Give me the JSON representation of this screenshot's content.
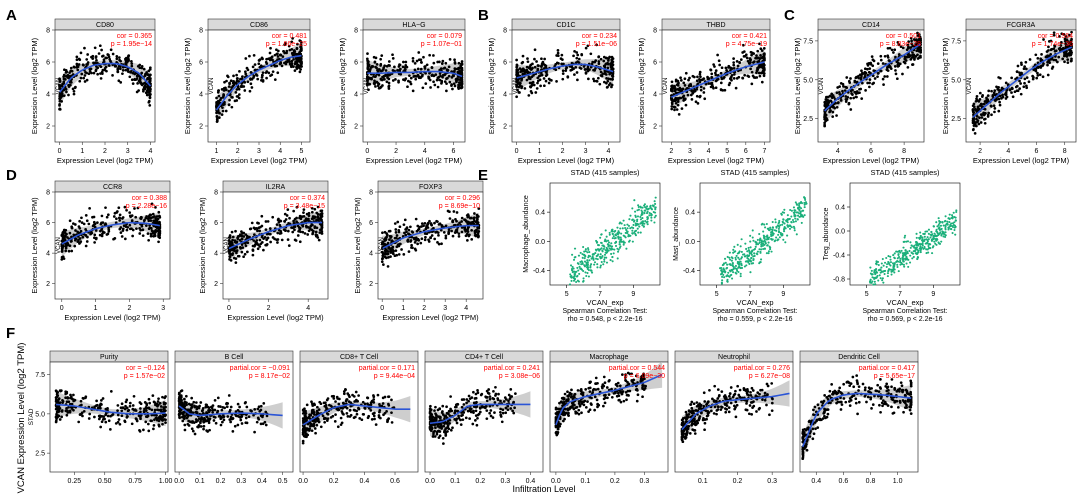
{
  "figure": {
    "panel_letters": [
      "A",
      "B",
      "C",
      "D",
      "E",
      "F"
    ],
    "common": {
      "ylabel": "Expression Level (log2 TPM)",
      "xlabel": "Expression Level (log2 TPM)",
      "vcan": "VCAN",
      "stad": "STAD",
      "f_ylabel": "VCAN Expression Level (log2 TPM)",
      "f_xlabel": "Infiltration Level"
    }
  },
  "colors": {
    "point": "#000000",
    "fit": "#2b55d6",
    "ribbon": "#bdbdbd",
    "stat": "#ff0000",
    "strip": "#d9d9d9",
    "green": "#1aaf7a"
  },
  "chart_data": [
    {
      "panel": "A",
      "title": "CD80",
      "type": "scatter",
      "ytick_labels": [
        "2",
        "4",
        "6",
        "8"
      ],
      "xtick_labels": [
        "0",
        "1",
        "2",
        "3",
        "4"
      ],
      "xlim": [
        -0.2,
        4.2
      ],
      "ylim": [
        1,
        8
      ],
      "xticks": [
        0,
        1,
        2,
        3,
        4
      ],
      "yticks": [
        2,
        4,
        6,
        8
      ],
      "stat1": "cor = 0.365",
      "stat2": "p = 1.95e−14",
      "fit": [
        [
          0,
          4.1
        ],
        [
          0.5,
          5.0
        ],
        [
          1,
          5.5
        ],
        [
          1.5,
          5.8
        ],
        [
          2,
          5.9
        ],
        [
          2.5,
          5.9
        ],
        [
          3,
          5.7
        ],
        [
          3.5,
          5.3
        ],
        [
          4,
          4.5
        ]
      ],
      "n": 340
    },
    {
      "panel": "A",
      "title": "CD86",
      "type": "scatter",
      "ytick_labels": [
        "2",
        "4",
        "6",
        "8"
      ],
      "xtick_labels": [
        "1",
        "2",
        "3",
        "4",
        "5"
      ],
      "xlim": [
        0.6,
        5.4
      ],
      "ylim": [
        1,
        8
      ],
      "xticks": [
        1,
        2,
        3,
        4,
        5
      ],
      "yticks": [
        2,
        4,
        6,
        8
      ],
      "stat1": "cor = 0.481",
      "stat2": "p = 1.66e−25",
      "fit": [
        [
          1,
          3.0
        ],
        [
          1.5,
          3.9
        ],
        [
          2,
          4.6
        ],
        [
          2.5,
          5.1
        ],
        [
          3,
          5.5
        ],
        [
          3.5,
          5.8
        ],
        [
          4,
          6.1
        ],
        [
          4.5,
          6.3
        ],
        [
          5,
          6.4
        ]
      ],
      "n": 340
    },
    {
      "panel": "A",
      "title": "HLA−G",
      "type": "scatter",
      "ytick_labels": [
        "2",
        "4",
        "6",
        "8"
      ],
      "xtick_labels": [
        "0",
        "2",
        "4",
        "6"
      ],
      "xlim": [
        -0.3,
        6.8
      ],
      "ylim": [
        1,
        8
      ],
      "xticks": [
        0,
        2,
        4,
        6
      ],
      "yticks": [
        2,
        4,
        6,
        8
      ],
      "stat1": "cor = 0.079",
      "stat2": "p = 1.07e−01",
      "fit": [
        [
          0,
          5.3
        ],
        [
          1,
          5.3
        ],
        [
          2,
          5.35
        ],
        [
          3,
          5.35
        ],
        [
          4,
          5.4
        ],
        [
          5,
          5.4
        ],
        [
          6,
          5.3
        ],
        [
          6.6,
          5.1
        ]
      ],
      "n": 340
    },
    {
      "panel": "B",
      "title": "CD1C",
      "type": "scatter",
      "ytick_labels": [
        "2",
        "4",
        "6",
        "8"
      ],
      "xtick_labels": [
        "0",
        "1",
        "2",
        "3",
        "4"
      ],
      "xlim": [
        -0.2,
        4.5
      ],
      "ylim": [
        1,
        8
      ],
      "xticks": [
        0,
        1,
        2,
        3,
        4
      ],
      "yticks": [
        2,
        4,
        6,
        8
      ],
      "stat1": "cor = 0.234",
      "stat2": "p = 1.51e−06",
      "fit": [
        [
          0,
          5.0
        ],
        [
          0.5,
          5.2
        ],
        [
          1,
          5.4
        ],
        [
          1.5,
          5.6
        ],
        [
          2,
          5.75
        ],
        [
          2.5,
          5.85
        ],
        [
          3,
          5.85
        ],
        [
          3.5,
          5.7
        ],
        [
          4.2,
          5.4
        ]
      ],
      "n": 340
    },
    {
      "panel": "B",
      "title": "THBD",
      "type": "scatter",
      "ytick_labels": [
        "2",
        "4",
        "6",
        "8"
      ],
      "xtick_labels": [
        "2",
        "3",
        "4",
        "5",
        "6",
        "7"
      ],
      "xlim": [
        1.5,
        7.3
      ],
      "ylim": [
        1,
        8
      ],
      "xticks": [
        2,
        3,
        4,
        5,
        6,
        7
      ],
      "yticks": [
        2,
        4,
        6,
        8
      ],
      "stat1": "cor = 0.421",
      "stat2": "p = 4.75e−19",
      "fit": [
        [
          2,
          3.8
        ],
        [
          3,
          4.3
        ],
        [
          4,
          4.8
        ],
        [
          5,
          5.3
        ],
        [
          6,
          5.7
        ],
        [
          7,
          6.0
        ]
      ],
      "n": 340
    },
    {
      "panel": "C",
      "title": "CD14",
      "type": "scatter",
      "ytick_labels": [
        "2.5",
        "5.0",
        "7.5"
      ],
      "xtick_labels": [
        "4",
        "6",
        "8"
      ],
      "xlim": [
        2.8,
        9.2
      ],
      "ylim": [
        1,
        8.2
      ],
      "xticks": [
        4,
        6,
        8
      ],
      "yticks": [
        2.5,
        5.0,
        7.5
      ],
      "stat1": "cor = 0.501",
      "stat2": "p = 8.83e−28",
      "fit": [
        [
          3.2,
          3.0
        ],
        [
          4,
          3.8
        ],
        [
          5,
          4.6
        ],
        [
          6,
          5.3
        ],
        [
          7,
          6.0
        ],
        [
          8,
          6.6
        ],
        [
          9,
          7.3
        ]
      ],
      "n": 340
    },
    {
      "panel": "C",
      "title": "FCGR3A",
      "type": "scatter",
      "ytick_labels": [
        "2.5",
        "5.0",
        "7.5"
      ],
      "xtick_labels": [
        "2",
        "4",
        "6",
        "8"
      ],
      "xlim": [
        1,
        8.8
      ],
      "ylim": [
        1,
        8.2
      ],
      "xticks": [
        2,
        4,
        6,
        8
      ],
      "yticks": [
        2.5,
        5.0,
        7.5
      ],
      "stat1": "cor = 0.564",
      "stat2": "p = 1.74e−36",
      "fit": [
        [
          1.5,
          2.6
        ],
        [
          2.5,
          3.4
        ],
        [
          3.5,
          4.2
        ],
        [
          4.5,
          4.9
        ],
        [
          5.5,
          5.6
        ],
        [
          6.5,
          6.2
        ],
        [
          7.5,
          6.7
        ],
        [
          8.5,
          7.1
        ]
      ],
      "n": 340
    },
    {
      "panel": "D",
      "title": "CCR8",
      "type": "scatter",
      "ytick_labels": [
        "2",
        "4",
        "6",
        "8"
      ],
      "xtick_labels": [
        "0",
        "1",
        "2",
        "3"
      ],
      "xlim": [
        -0.2,
        3.2
      ],
      "ylim": [
        1,
        8
      ],
      "xticks": [
        0,
        1,
        2,
        3
      ],
      "yticks": [
        2,
        4,
        6,
        8
      ],
      "stat1": "cor = 0.388",
      "stat2": "p = 2.28e−16",
      "fit": [
        [
          0,
          4.6
        ],
        [
          0.5,
          5.2
        ],
        [
          1,
          5.6
        ],
        [
          1.5,
          5.85
        ],
        [
          2,
          6.0
        ],
        [
          2.5,
          5.95
        ],
        [
          2.9,
          5.8
        ]
      ],
      "n": 340
    },
    {
      "panel": "D",
      "title": "IL2RA",
      "type": "scatter",
      "ytick_labels": [
        "2",
        "4",
        "6",
        "8"
      ],
      "xtick_labels": [
        "0",
        "2",
        "4"
      ],
      "xlim": [
        -0.3,
        5
      ],
      "ylim": [
        1,
        8
      ],
      "xticks": [
        0,
        2,
        4
      ],
      "yticks": [
        2,
        4,
        6,
        8
      ],
      "stat1": "cor = 0.374",
      "stat2": "p = 3.48e−15",
      "fit": [
        [
          0,
          4.3
        ],
        [
          1,
          4.9
        ],
        [
          2,
          5.4
        ],
        [
          3,
          5.8
        ],
        [
          4,
          6.0
        ],
        [
          4.7,
          6.0
        ]
      ],
      "n": 340
    },
    {
      "panel": "D",
      "title": "FOXP3",
      "type": "scatter",
      "ytick_labels": [
        "2",
        "4",
        "6",
        "8"
      ],
      "xtick_labels": [
        "0",
        "1",
        "2",
        "3",
        "4"
      ],
      "xlim": [
        -0.2,
        4.8
      ],
      "ylim": [
        1,
        8
      ],
      "xticks": [
        0,
        1,
        2,
        3,
        4
      ],
      "yticks": [
        2,
        4,
        6,
        8
      ],
      "stat1": "cor = 0.296",
      "stat2": "p = 8.69e−10",
      "fit": [
        [
          0,
          4.3
        ],
        [
          1,
          5.0
        ],
        [
          2,
          5.4
        ],
        [
          3,
          5.65
        ],
        [
          4,
          5.8
        ],
        [
          4.6,
          5.8
        ]
      ],
      "n": 340
    },
    {
      "panel": "E",
      "title": "STAD (415 samples)",
      "type": "scatter",
      "ylabel": "Macrophage_abundance",
      "xlabel": "VCAN_exp",
      "test": "Spearman Correlation Test:",
      "rho": "rho = 0.548, p < 2.2e-16",
      "ytick_labels": [
        "-0.4",
        "0.0",
        "0.4"
      ],
      "xtick_labels": [
        "5",
        "7",
        "9"
      ],
      "xlim": [
        4,
        10.6
      ],
      "ylim": [
        -0.6,
        0.8
      ],
      "xticks": [
        5,
        7,
        9
      ],
      "yticks": [
        -0.4,
        0.0,
        0.4
      ],
      "n": 400
    },
    {
      "panel": "E",
      "title": "STAD (415 samples)",
      "type": "scatter",
      "ylabel": "Mast_abundance",
      "xlabel": "VCAN_exp",
      "test": "Spearman Correlation Test:",
      "rho": "rho = 0.559, p < 2.2e-16",
      "ytick_labels": [
        "-0.4",
        "0.0",
        "0.4"
      ],
      "xtick_labels": [
        "5",
        "7",
        "9"
      ],
      "xlim": [
        4,
        10.6
      ],
      "ylim": [
        -0.6,
        0.8
      ],
      "xticks": [
        5,
        7,
        9
      ],
      "yticks": [
        -0.4,
        0.0,
        0.4
      ],
      "n": 400
    },
    {
      "panel": "E",
      "title": "STAD (415 samples)",
      "type": "scatter",
      "ylabel": "Treg_abundance",
      "xlabel": "VCAN_exp",
      "test": "Spearman Correlation Test:",
      "rho": "rho = 0.569, p < 2.2e-16",
      "ytick_labels": [
        "-0.8",
        "-0.4",
        "0.0",
        "0.4"
      ],
      "xtick_labels": [
        "5",
        "7",
        "9"
      ],
      "xlim": [
        4,
        10.6
      ],
      "ylim": [
        -0.9,
        0.8
      ],
      "xticks": [
        5,
        7,
        9
      ],
      "yticks": [
        -0.8,
        -0.4,
        0.0,
        0.4
      ],
      "n": 400
    },
    {
      "panel": "F",
      "title": "Purity",
      "type": "scatter",
      "stat1": "cor = −0.124",
      "stat2": "p = 1.57e−02",
      "xtick_labels": [
        "0.25",
        "0.50",
        "0.75",
        "1.00"
      ],
      "ytick_labels": [
        "2.5",
        "5.0",
        "7.5"
      ],
      "xlim": [
        0.05,
        1.02
      ],
      "ylim": [
        1.3,
        8.3
      ],
      "xticks": [
        0.25,
        0.5,
        0.75,
        1.0
      ],
      "yticks": [
        2.5,
        5.0,
        7.5
      ],
      "fit": [
        [
          0.1,
          5.6
        ],
        [
          0.25,
          5.5
        ],
        [
          0.4,
          5.3
        ],
        [
          0.55,
          5.1
        ],
        [
          0.7,
          5.0
        ],
        [
          0.85,
          5.0
        ],
        [
          1.0,
          5.05
        ]
      ],
      "n": 300
    },
    {
      "panel": "F",
      "title": "B Cell",
      "type": "scatter",
      "stat1": "partial.cor = −0.091",
      "stat2": "p = 8.17e−02",
      "xtick_labels": [
        "0.0",
        "0.1",
        "0.2",
        "0.3",
        "0.4",
        "0.5"
      ],
      "ytick_labels": [
        "2.5",
        "5.0",
        "7.5"
      ],
      "xlim": [
        -0.02,
        0.55
      ],
      "ylim": [
        1.3,
        8.3
      ],
      "xticks": [
        0,
        0.1,
        0.2,
        0.3,
        0.4,
        0.5
      ],
      "yticks": [
        2.5,
        5.0,
        7.5
      ],
      "fit": [
        [
          0,
          5.5
        ],
        [
          0.05,
          5.0
        ],
        [
          0.1,
          4.9
        ],
        [
          0.2,
          5.0
        ],
        [
          0.3,
          5.05
        ],
        [
          0.4,
          5.0
        ],
        [
          0.5,
          4.9
        ]
      ],
      "n": 300
    },
    {
      "panel": "F",
      "title": "CD8+ T Cell",
      "type": "scatter",
      "stat1": "partial.cor = 0.171",
      "stat2": "p = 9.44e−04",
      "xtick_labels": [
        "0.0",
        "0.2",
        "0.4",
        "0.6"
      ],
      "ytick_labels": [
        "2.5",
        "5.0",
        "7.5"
      ],
      "xlim": [
        -0.02,
        0.75
      ],
      "ylim": [
        1.3,
        8.3
      ],
      "xticks": [
        0,
        0.2,
        0.4,
        0.6
      ],
      "yticks": [
        2.5,
        5.0,
        7.5
      ],
      "fit": [
        [
          0,
          4.3
        ],
        [
          0.1,
          4.9
        ],
        [
          0.2,
          5.4
        ],
        [
          0.3,
          5.6
        ],
        [
          0.4,
          5.5
        ],
        [
          0.5,
          5.4
        ],
        [
          0.6,
          5.3
        ],
        [
          0.7,
          5.3
        ]
      ],
      "n": 300
    },
    {
      "panel": "F",
      "title": "CD4+ T Cell",
      "type": "scatter",
      "stat1": "partial.cor = 0.241",
      "stat2": "p = 3.08e−06",
      "xtick_labels": [
        "0.0",
        "0.1",
        "0.2",
        "0.3",
        "0.4"
      ],
      "ytick_labels": [
        "2.5",
        "5.0",
        "7.5"
      ],
      "xlim": [
        -0.02,
        0.45
      ],
      "ylim": [
        1.3,
        8.3
      ],
      "xticks": [
        0,
        0.1,
        0.2,
        0.3,
        0.4
      ],
      "yticks": [
        2.5,
        5.0,
        7.5
      ],
      "fit": [
        [
          0,
          4.4
        ],
        [
          0.05,
          4.5
        ],
        [
          0.1,
          4.9
        ],
        [
          0.15,
          5.5
        ],
        [
          0.2,
          5.6
        ],
        [
          0.3,
          5.6
        ],
        [
          0.4,
          5.6
        ]
      ],
      "n": 300
    },
    {
      "panel": "F",
      "title": "Macrophage",
      "type": "scatter",
      "stat1": "partial.cor = 0.544",
      "stat2": "p = 6.09e−30",
      "xtick_labels": [
        "0.0",
        "0.1",
        "0.2",
        "0.3"
      ],
      "ytick_labels": [
        "2.5",
        "5.0",
        "7.5"
      ],
      "xlim": [
        -0.02,
        0.38
      ],
      "ylim": [
        1.3,
        8.3
      ],
      "xticks": [
        0,
        0.1,
        0.2,
        0.3
      ],
      "yticks": [
        2.5,
        5.0,
        7.5
      ],
      "fit": [
        [
          0,
          4.3
        ],
        [
          0.02,
          5.3
        ],
        [
          0.05,
          5.8
        ],
        [
          0.1,
          6.1
        ],
        [
          0.15,
          6.3
        ],
        [
          0.2,
          6.5
        ],
        [
          0.3,
          7.0
        ],
        [
          0.36,
          7.5
        ]
      ],
      "n": 300
    },
    {
      "panel": "F",
      "title": "Neutrophil",
      "type": "scatter",
      "stat1": "partial.cor = 0.276",
      "stat2": "p = 6.27e−08",
      "xtick_labels": [
        "0.1",
        "0.2",
        "0.3"
      ],
      "ytick_labels": [
        "2.5",
        "5.0",
        "7.5"
      ],
      "xlim": [
        0.02,
        0.36
      ],
      "ylim": [
        1.3,
        8.3
      ],
      "xticks": [
        0.1,
        0.2,
        0.3
      ],
      "yticks": [
        2.5,
        5.0,
        7.5
      ],
      "fit": [
        [
          0.04,
          4.0
        ],
        [
          0.08,
          5.0
        ],
        [
          0.12,
          5.5
        ],
        [
          0.16,
          5.8
        ],
        [
          0.2,
          5.9
        ],
        [
          0.25,
          6.0
        ],
        [
          0.3,
          6.1
        ],
        [
          0.35,
          6.3
        ]
      ],
      "n": 300
    },
    {
      "panel": "F",
      "title": "Dendritic Cell",
      "type": "scatter",
      "stat1": "partial.cor = 0.417",
      "stat2": "p = 5.65e−17",
      "xtick_labels": [
        "0.4",
        "0.6",
        "0.8",
        "1.0"
      ],
      "ytick_labels": [
        "2.5",
        "5.0",
        "7.5"
      ],
      "xlim": [
        0.28,
        1.15
      ],
      "ylim": [
        1.3,
        8.3
      ],
      "xticks": [
        0.4,
        0.6,
        0.8,
        1.0
      ],
      "yticks": [
        2.5,
        5.0,
        7.5
      ],
      "fit": [
        [
          0.3,
          2.9
        ],
        [
          0.4,
          5.0
        ],
        [
          0.5,
          5.9
        ],
        [
          0.6,
          6.2
        ],
        [
          0.7,
          6.3
        ],
        [
          0.8,
          6.25
        ],
        [
          0.9,
          6.2
        ],
        [
          1.0,
          6.1
        ],
        [
          1.1,
          6.0
        ]
      ],
      "n": 300
    }
  ]
}
